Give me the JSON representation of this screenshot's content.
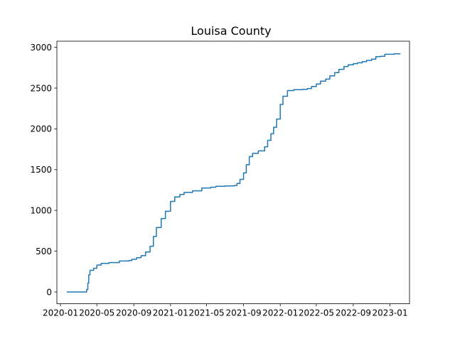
{
  "chart_data": {
    "type": "line",
    "title": "Louisa County",
    "xlabel": "",
    "ylabel": "",
    "grid": false,
    "x_axis_type": "date",
    "xlim": [
      "2019-12-20",
      "2023-03-07"
    ],
    "ylim": [
      -145,
      3075
    ],
    "x_ticks": [
      "2020-01",
      "2020-05",
      "2020-09",
      "2021-01",
      "2021-05",
      "2021-09",
      "2022-01",
      "2022-05",
      "2022-09",
      "2023-01"
    ],
    "y_ticks": [
      0,
      500,
      1000,
      1500,
      2000,
      2500,
      3000
    ],
    "series": [
      {
        "color": "#1f77b4",
        "step": true,
        "points": [
          [
            "2020-01-22",
            0
          ],
          [
            "2020-02-15",
            0
          ],
          [
            "2020-03-10",
            0
          ],
          [
            "2020-03-24",
            0
          ],
          [
            "2020-03-28",
            30
          ],
          [
            "2020-04-01",
            110
          ],
          [
            "2020-04-04",
            210
          ],
          [
            "2020-04-08",
            265
          ],
          [
            "2020-04-20",
            290
          ],
          [
            "2020-05-01",
            330
          ],
          [
            "2020-05-15",
            350
          ],
          [
            "2020-06-10",
            360
          ],
          [
            "2020-07-15",
            380
          ],
          [
            "2020-08-15",
            385
          ],
          [
            "2020-08-25",
            400
          ],
          [
            "2020-09-10",
            420
          ],
          [
            "2020-09-25",
            445
          ],
          [
            "2020-10-10",
            490
          ],
          [
            "2020-10-25",
            560
          ],
          [
            "2020-11-05",
            680
          ],
          [
            "2020-11-15",
            790
          ],
          [
            "2020-12-01",
            900
          ],
          [
            "2020-12-15",
            990
          ],
          [
            "2021-01-01",
            1110
          ],
          [
            "2021-01-15",
            1165
          ],
          [
            "2021-02-01",
            1195
          ],
          [
            "2021-02-15",
            1220
          ],
          [
            "2021-03-15",
            1240
          ],
          [
            "2021-04-15",
            1275
          ],
          [
            "2021-05-15",
            1285
          ],
          [
            "2021-06-01",
            1295
          ],
          [
            "2021-07-01",
            1300
          ],
          [
            "2021-08-01",
            1305
          ],
          [
            "2021-08-10",
            1330
          ],
          [
            "2021-08-20",
            1380
          ],
          [
            "2021-09-01",
            1460
          ],
          [
            "2021-09-10",
            1560
          ],
          [
            "2021-09-20",
            1660
          ],
          [
            "2021-10-01",
            1700
          ],
          [
            "2021-10-20",
            1730
          ],
          [
            "2021-11-10",
            1780
          ],
          [
            "2021-11-20",
            1860
          ],
          [
            "2021-12-01",
            1940
          ],
          [
            "2021-12-10",
            2020
          ],
          [
            "2021-12-20",
            2120
          ],
          [
            "2022-01-01",
            2300
          ],
          [
            "2022-01-10",
            2400
          ],
          [
            "2022-01-25",
            2470
          ],
          [
            "2022-02-15",
            2480
          ],
          [
            "2022-03-15",
            2485
          ],
          [
            "2022-04-01",
            2495
          ],
          [
            "2022-04-15",
            2520
          ],
          [
            "2022-05-01",
            2550
          ],
          [
            "2022-05-15",
            2585
          ],
          [
            "2022-06-01",
            2610
          ],
          [
            "2022-06-15",
            2650
          ],
          [
            "2022-07-01",
            2690
          ],
          [
            "2022-07-15",
            2730
          ],
          [
            "2022-08-01",
            2765
          ],
          [
            "2022-08-15",
            2785
          ],
          [
            "2022-09-01",
            2800
          ],
          [
            "2022-09-15",
            2810
          ],
          [
            "2022-10-01",
            2825
          ],
          [
            "2022-10-15",
            2840
          ],
          [
            "2022-11-01",
            2855
          ],
          [
            "2022-11-15",
            2885
          ],
          [
            "2022-12-01",
            2890
          ],
          [
            "2022-12-15",
            2915
          ],
          [
            "2023-01-15",
            2920
          ],
          [
            "2023-02-05",
            2920
          ]
        ]
      }
    ]
  }
}
